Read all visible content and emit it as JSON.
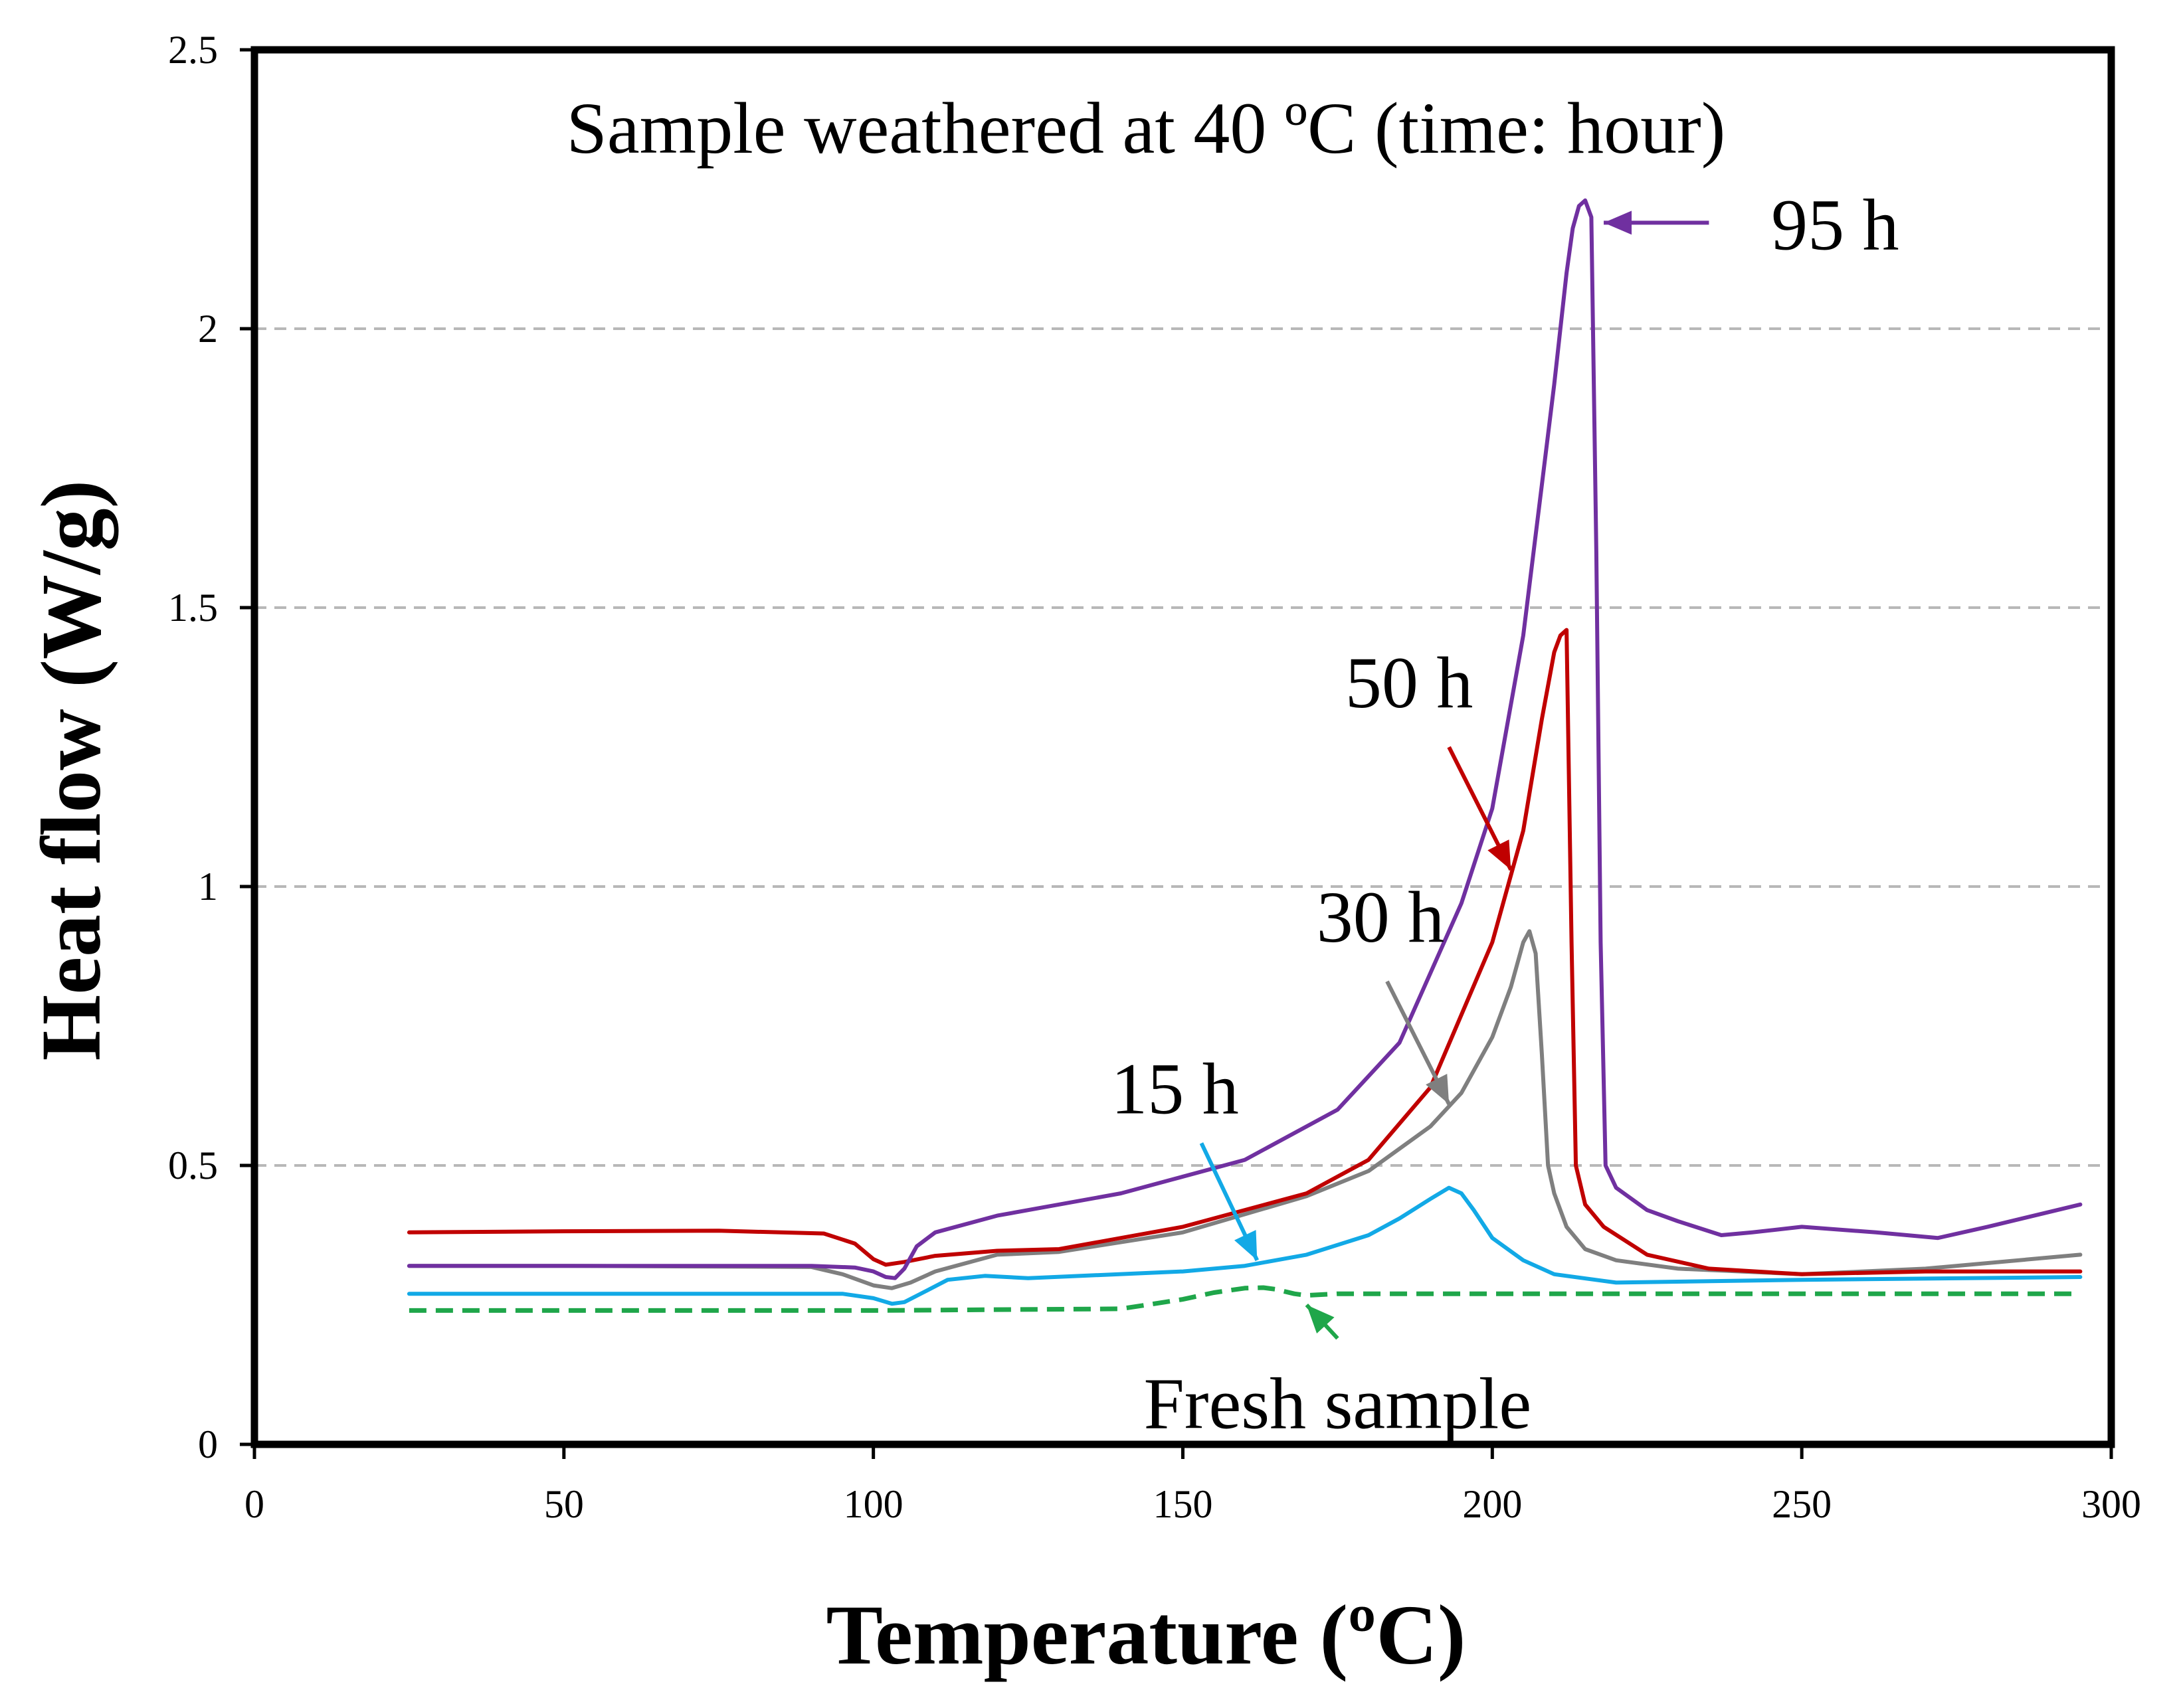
{
  "chart_data": {
    "type": "line",
    "title": "Sample weathered at 40 ºC (time: hour)",
    "xlabel": "Temperature (ºC)",
    "ylabel": "Heat flow (W/g)",
    "xlim": [
      0,
      300
    ],
    "ylim": [
      0,
      2.5
    ],
    "x_ticks": [
      0,
      50,
      100,
      150,
      200,
      250,
      300
    ],
    "x_tick_labels": [
      "0",
      "50",
      "100",
      "150",
      "200",
      "250",
      "300"
    ],
    "y_ticks": [
      0,
      0.5,
      1,
      1.5,
      2,
      2.5
    ],
    "y_tick_labels": [
      "0",
      "0.5",
      "1",
      "1.5",
      "2",
      "2.5"
    ],
    "grid": "horizontal dashed at 0.5, 1, 1.5, 2",
    "legend": "none (inline labels with arrows)",
    "series": [
      {
        "name": "Fresh sample",
        "label": "Fresh sample",
        "color": "#1fa64a",
        "dash": true,
        "x": [
          25,
          50,
          100,
          140,
          150,
          155,
          160,
          163,
          165,
          168,
          170,
          175,
          200,
          250,
          295
        ],
        "y": [
          0.24,
          0.24,
          0.24,
          0.243,
          0.26,
          0.272,
          0.28,
          0.281,
          0.278,
          0.27,
          0.267,
          0.27,
          0.27,
          0.27,
          0.27
        ]
      },
      {
        "name": "15 h",
        "label": "15 h",
        "color": "#12a9e6",
        "dash": false,
        "x": [
          25,
          50,
          95,
          100,
          103,
          105,
          108,
          112,
          118,
          125,
          150,
          160,
          170,
          180,
          185,
          190,
          193,
          195,
          197,
          200,
          205,
          210,
          220,
          250,
          295
        ],
        "y": [
          0.27,
          0.27,
          0.27,
          0.262,
          0.252,
          0.255,
          0.272,
          0.295,
          0.302,
          0.298,
          0.31,
          0.32,
          0.34,
          0.375,
          0.405,
          0.44,
          0.46,
          0.45,
          0.42,
          0.37,
          0.33,
          0.305,
          0.29,
          0.295,
          0.3
        ]
      },
      {
        "name": "30 h",
        "label": "30 h",
        "color": "#7f7f7f",
        "dash": false,
        "x": [
          25,
          50,
          90,
          95,
          100,
          103,
          106,
          110,
          120,
          130,
          150,
          170,
          180,
          190,
          195,
          200,
          203,
          205,
          206,
          207,
          208,
          209,
          210,
          212,
          215,
          220,
          230,
          250,
          270,
          295
        ],
        "y": [
          0.32,
          0.32,
          0.318,
          0.305,
          0.285,
          0.28,
          0.29,
          0.31,
          0.34,
          0.345,
          0.38,
          0.445,
          0.49,
          0.57,
          0.63,
          0.73,
          0.82,
          0.9,
          0.92,
          0.88,
          0.7,
          0.5,
          0.45,
          0.39,
          0.35,
          0.33,
          0.315,
          0.305,
          0.315,
          0.34
        ]
      },
      {
        "name": "50 h",
        "label": "50 h",
        "color": "#c00000",
        "dash": false,
        "x": [
          25,
          50,
          75,
          92,
          97,
          100,
          102,
          105,
          110,
          120,
          130,
          150,
          170,
          180,
          190,
          200,
          205,
          208,
          210,
          211,
          212,
          212.8,
          213.5,
          215,
          218,
          225,
          235,
          250,
          270,
          295
        ],
        "y": [
          0.38,
          0.382,
          0.383,
          0.378,
          0.36,
          0.332,
          0.322,
          0.327,
          0.338,
          0.347,
          0.35,
          0.39,
          0.45,
          0.51,
          0.64,
          0.9,
          1.1,
          1.3,
          1.42,
          1.45,
          1.46,
          0.9,
          0.5,
          0.43,
          0.39,
          0.34,
          0.315,
          0.305,
          0.31,
          0.31
        ]
      },
      {
        "name": "95 h",
        "label": "95 h",
        "color": "#7030a0",
        "dash": false,
        "x": [
          25,
          50,
          90,
          97,
          100,
          102,
          103.5,
          105,
          107,
          110,
          120,
          140,
          160,
          175,
          185,
          195,
          200,
          205,
          208,
          210,
          212,
          213,
          214,
          215,
          216,
          216.8,
          217.5,
          218.3,
          220,
          225,
          230,
          237,
          242,
          250,
          262,
          272,
          280,
          295
        ],
        "y": [
          0.32,
          0.32,
          0.32,
          0.317,
          0.31,
          0.3,
          0.298,
          0.315,
          0.355,
          0.38,
          0.41,
          0.45,
          0.51,
          0.6,
          0.72,
          0.97,
          1.14,
          1.45,
          1.72,
          1.9,
          2.1,
          2.18,
          2.22,
          2.23,
          2.2,
          1.6,
          0.9,
          0.5,
          0.46,
          0.42,
          0.4,
          0.375,
          0.38,
          0.39,
          0.38,
          0.37,
          0.39,
          0.43
        ]
      }
    ],
    "annotations": [
      {
        "text": "95 h",
        "series": "95 h",
        "color": "#7030a0",
        "arrow_from": [
          235,
          2.19
        ],
        "arrow_to": [
          218,
          2.19
        ]
      },
      {
        "text": "50 h",
        "series": "50 h",
        "color": "#c00000",
        "arrow_from": [
          193,
          1.25
        ],
        "arrow_to": [
          203,
          1.03
        ]
      },
      {
        "text": "30 h",
        "series": "30 h",
        "color": "#7f7f7f",
        "arrow_from": [
          183,
          0.83
        ],
        "arrow_to": [
          193,
          0.61
        ]
      },
      {
        "text": "15 h",
        "series": "15 h",
        "color": "#12a9e6",
        "arrow_from": [
          153,
          0.54
        ],
        "arrow_to": [
          162,
          0.33
        ]
      },
      {
        "text": "Fresh sample",
        "series": "Fresh sample",
        "color": "#1fa64a",
        "arrow_from": [
          175,
          0.19
        ],
        "arrow_to": [
          170,
          0.25
        ]
      }
    ]
  }
}
